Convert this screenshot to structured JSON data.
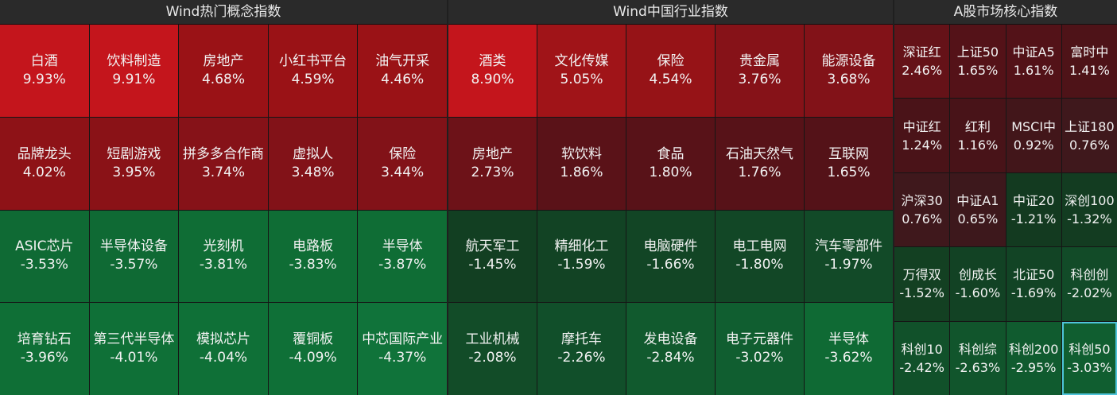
{
  "panels": [
    {
      "title": "Wind热门概念指数",
      "cols": 5,
      "rows": 4,
      "cells": [
        {
          "name": "白酒",
          "pct": "9.93%",
          "color": "#c4151c"
        },
        {
          "name": "饮料制造",
          "pct": "9.91%",
          "color": "#c4151c"
        },
        {
          "name": "房地产",
          "pct": "4.68%",
          "color": "#9a1216"
        },
        {
          "name": "小红书平台",
          "pct": "4.59%",
          "color": "#9a1216"
        },
        {
          "name": "油气开采",
          "pct": "4.46%",
          "color": "#9a1216"
        },
        {
          "name": "品牌龙头",
          "pct": "4.02%",
          "color": "#8e1217"
        },
        {
          "name": "短剧游戏",
          "pct": "3.95%",
          "color": "#8a1217"
        },
        {
          "name": "拼多多合作商",
          "pct": "3.74%",
          "color": "#861218"
        },
        {
          "name": "虚拟人",
          "pct": "3.48%",
          "color": "#821218"
        },
        {
          "name": "保险",
          "pct": "3.44%",
          "color": "#821218"
        },
        {
          "name": "ASIC芯片",
          "pct": "-3.53%",
          "color": "#0f6a34"
        },
        {
          "name": "半导体设备",
          "pct": "-3.57%",
          "color": "#0f6a34"
        },
        {
          "name": "光刻机",
          "pct": "-3.81%",
          "color": "#0f6d35"
        },
        {
          "name": "电路板",
          "pct": "-3.83%",
          "color": "#0f6d35"
        },
        {
          "name": "半导体",
          "pct": "-3.87%",
          "color": "#0f6d35"
        },
        {
          "name": "培育钻石",
          "pct": "-3.96%",
          "color": "#0f6f36"
        },
        {
          "name": "第三代半导体",
          "pct": "-4.01%",
          "color": "#0f7037"
        },
        {
          "name": "模拟芯片",
          "pct": "-4.04%",
          "color": "#0f7037"
        },
        {
          "name": "覆铜板",
          "pct": "-4.09%",
          "color": "#0f7037"
        },
        {
          "name": "中芯国际产业",
          "pct": "-4.37%",
          "color": "#10733a"
        }
      ]
    },
    {
      "title": "Wind中国行业指数",
      "cols": 5,
      "rows": 4,
      "cells": [
        {
          "name": "酒类",
          "pct": "8.90%",
          "color": "#c4151c"
        },
        {
          "name": "文化传媒",
          "pct": "5.05%",
          "color": "#a01418"
        },
        {
          "name": "保险",
          "pct": "4.54%",
          "color": "#961317"
        },
        {
          "name": "贵金属",
          "pct": "3.76%",
          "color": "#861218"
        },
        {
          "name": "能源设备",
          "pct": "3.68%",
          "color": "#821218"
        },
        {
          "name": "房地产",
          "pct": "2.73%",
          "color": "#6d1218"
        },
        {
          "name": "软饮料",
          "pct": "1.86%",
          "color": "#5a1218"
        },
        {
          "name": "食品",
          "pct": "1.80%",
          "color": "#581218"
        },
        {
          "name": "石油天然气",
          "pct": "1.76%",
          "color": "#571218"
        },
        {
          "name": "互联网",
          "pct": "1.65%",
          "color": "#541218"
        },
        {
          "name": "航天军工",
          "pct": "-1.45%",
          "color": "#123f22"
        },
        {
          "name": "精细化工",
          "pct": "-1.59%",
          "color": "#124324"
        },
        {
          "name": "电脑硬件",
          "pct": "-1.66%",
          "color": "#124525"
        },
        {
          "name": "电工电网",
          "pct": "-1.80%",
          "color": "#124726"
        },
        {
          "name": "汽车零部件",
          "pct": "-1.97%",
          "color": "#124a28"
        },
        {
          "name": "工业机械",
          "pct": "-2.08%",
          "color": "#124c28"
        },
        {
          "name": "摩托车",
          "pct": "-2.26%",
          "color": "#114f2a"
        },
        {
          "name": "发电设备",
          "pct": "-2.84%",
          "color": "#115a2e"
        },
        {
          "name": "电子元器件",
          "pct": "-3.02%",
          "color": "#105e30"
        },
        {
          "name": "半导体",
          "pct": "-3.62%",
          "color": "#0f6a34"
        }
      ]
    },
    {
      "title": "A股市场核心指数",
      "cols": 4,
      "rows": 5,
      "cells": [
        {
          "name": "深证红",
          "pct": "2.46%",
          "color": "#651218"
        },
        {
          "name": "上证50",
          "pct": "1.65%",
          "color": "#541218"
        },
        {
          "name": "中证A5",
          "pct": "1.61%",
          "color": "#531218"
        },
        {
          "name": "富时中",
          "pct": "1.41%",
          "color": "#4e1318"
        },
        {
          "name": "中证红",
          "pct": "1.24%",
          "color": "#4a1318"
        },
        {
          "name": "红利",
          "pct": "1.16%",
          "color": "#481318"
        },
        {
          "name": "MSCI中",
          "pct": "0.92%",
          "color": "#42161a"
        },
        {
          "name": "上证180",
          "pct": "0.76%",
          "color": "#3f181c"
        },
        {
          "name": "沪深30",
          "pct": "0.76%",
          "color": "#3f181c"
        },
        {
          "name": "中证A1",
          "pct": "0.65%",
          "color": "#3d181c"
        },
        {
          "name": "中证20",
          "pct": "-1.21%",
          "color": "#133a20"
        },
        {
          "name": "深创100",
          "pct": "-1.32%",
          "color": "#133c21"
        },
        {
          "name": "万得双",
          "pct": "-1.52%",
          "color": "#134022"
        },
        {
          "name": "创成长",
          "pct": "-1.60%",
          "color": "#124224"
        },
        {
          "name": "北证50",
          "pct": "-1.69%",
          "color": "#124425"
        },
        {
          "name": "科创创",
          "pct": "-2.02%",
          "color": "#124b28"
        },
        {
          "name": "科创10",
          "pct": "-2.42%",
          "color": "#11512a"
        },
        {
          "name": "科创综",
          "pct": "-2.63%",
          "color": "#11552c"
        },
        {
          "name": "科创200",
          "pct": "-2.95%",
          "color": "#105b2f"
        },
        {
          "name": "科创50",
          "pct": "-3.03%",
          "color": "#105e30",
          "selected": true
        }
      ]
    }
  ]
}
